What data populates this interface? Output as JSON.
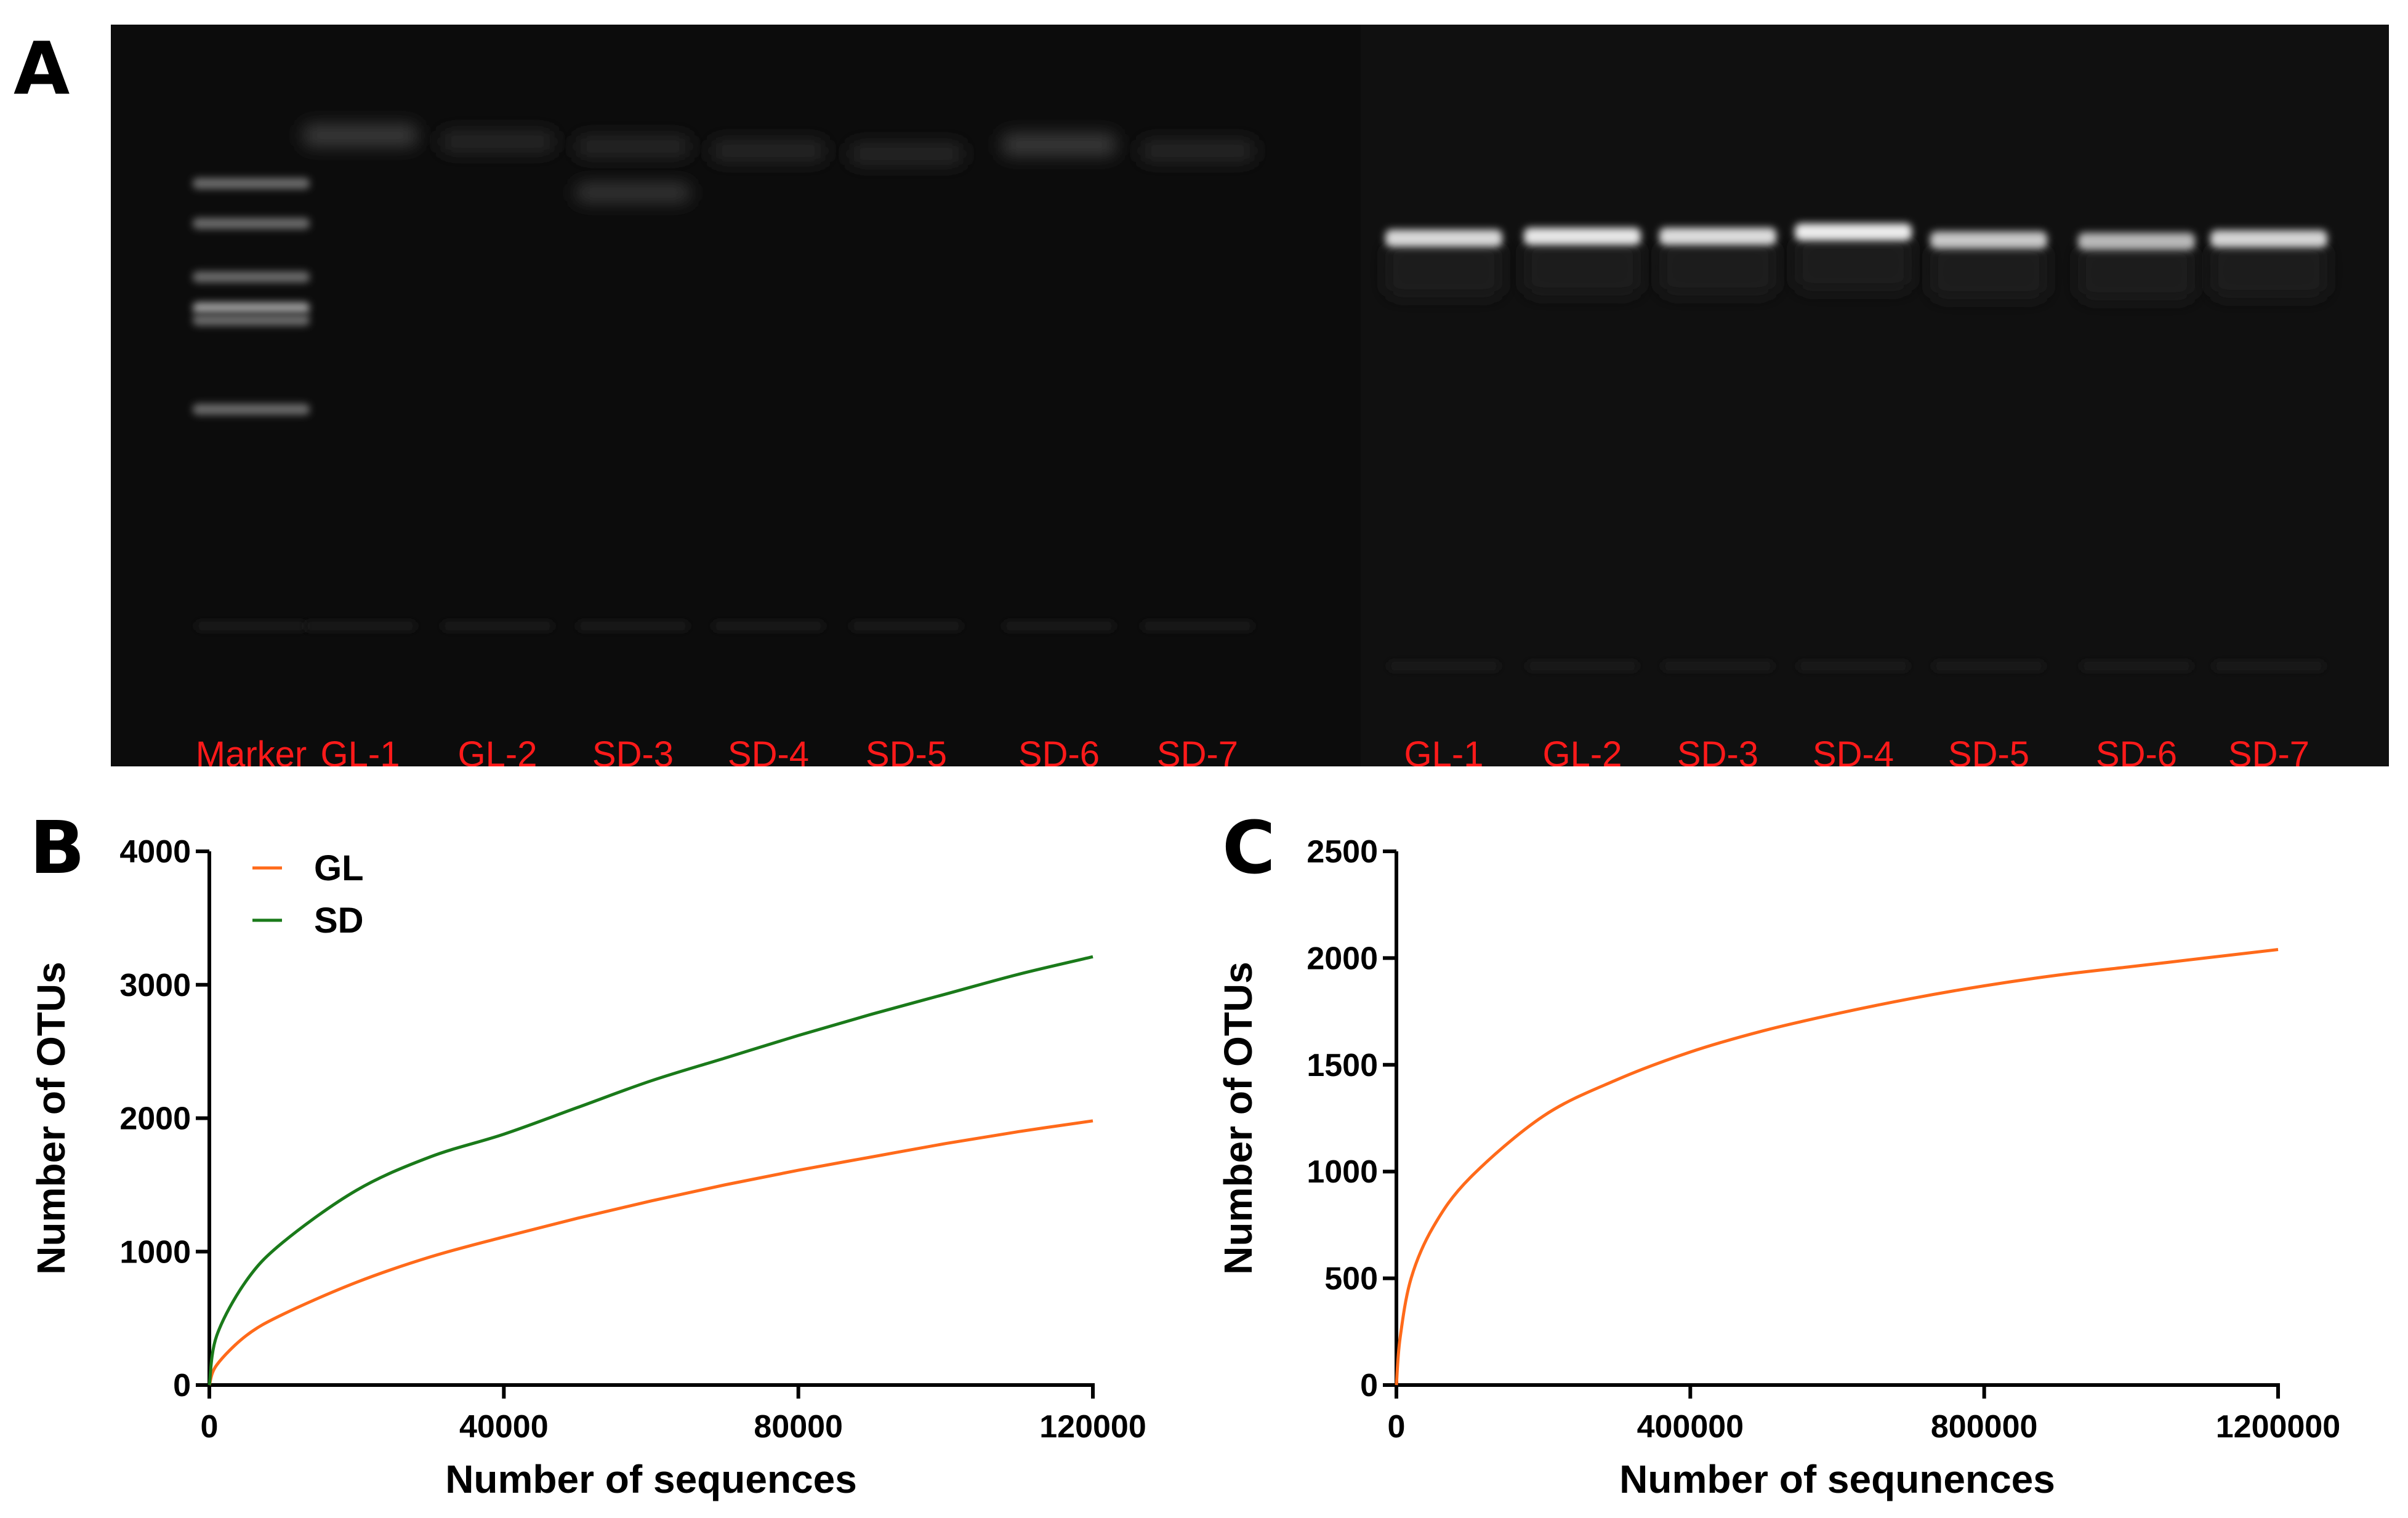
{
  "panels": {
    "a": "A",
    "b": "B",
    "c": "C"
  },
  "gel": {
    "lanes": [
      "Marker",
      "GL-1",
      "GL-2",
      "SD-3",
      "SD-4",
      "SD-5",
      "SD-6",
      "SD-7",
      "GL-1",
      "GL-2",
      "SD-3",
      "SD-4",
      "SD-5",
      "SD-6",
      "SD-7"
    ],
    "label_color": "#ff1a1a"
  },
  "chart_data": [
    {
      "type": "line",
      "panel": "B",
      "xlabel": "Number of sequences",
      "ylabel": "Number of OTUs",
      "xlim": [
        0,
        120000
      ],
      "ylim": [
        0,
        4000
      ],
      "xticks": [
        0,
        40000,
        80000,
        120000
      ],
      "yticks": [
        0,
        1000,
        2000,
        3000,
        4000
      ],
      "legend_position": "top-left",
      "grid": false,
      "series": [
        {
          "name": "GL",
          "color": "#ff6a1a",
          "x": [
            0,
            1000,
            5000,
            10000,
            20000,
            30000,
            40000,
            50000,
            60000,
            70000,
            80000,
            90000,
            100000,
            110000,
            120000
          ],
          "y": [
            0,
            150,
            370,
            530,
            770,
            960,
            1110,
            1250,
            1380,
            1500,
            1610,
            1710,
            1810,
            1900,
            1980
          ]
        },
        {
          "name": "SD",
          "color": "#1a7a1a",
          "x": [
            0,
            1000,
            5000,
            10000,
            20000,
            30000,
            40000,
            50000,
            60000,
            70000,
            80000,
            90000,
            100000,
            110000,
            120000
          ],
          "y": [
            0,
            370,
            780,
            1070,
            1460,
            1710,
            1880,
            2080,
            2280,
            2450,
            2620,
            2780,
            2930,
            3080,
            3210
          ]
        }
      ]
    },
    {
      "type": "line",
      "panel": "C",
      "xlabel": "Number of sequnences",
      "ylabel": "Number of OTUs",
      "xlim": [
        0,
        1200000
      ],
      "ylim": [
        0,
        2500
      ],
      "xticks": [
        0,
        400000,
        800000,
        1200000
      ],
      "yticks": [
        0,
        500,
        1000,
        1500,
        2000,
        2500
      ],
      "grid": false,
      "series": [
        {
          "color": "#ff6a1a",
          "x": [
            0,
            5000,
            20000,
            50000,
            100000,
            200000,
            300000,
            400000,
            500000,
            600000,
            700000,
            800000,
            900000,
            1000000,
            1100000,
            1200000
          ],
          "y": [
            0,
            220,
            500,
            740,
            970,
            1260,
            1430,
            1560,
            1660,
            1740,
            1810,
            1870,
            1920,
            1960,
            2000,
            2040
          ]
        }
      ]
    }
  ]
}
